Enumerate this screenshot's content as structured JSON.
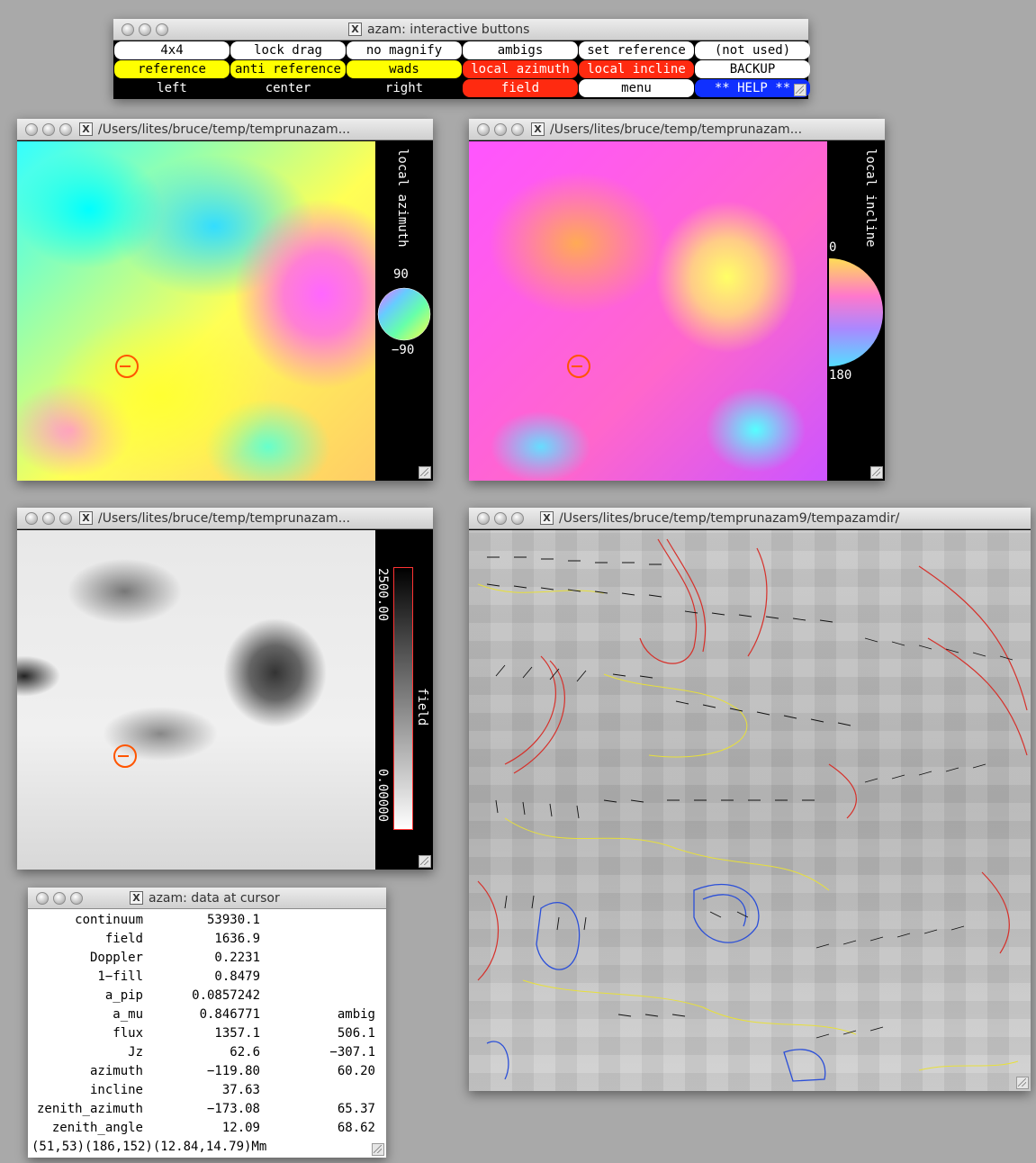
{
  "buttons_window": {
    "title": "azam: interactive buttons",
    "rows": [
      [
        {
          "label": "4x4",
          "color": "white"
        },
        {
          "label": "lock drag",
          "color": "white"
        },
        {
          "label": "no magnify",
          "color": "white"
        },
        {
          "label": "ambigs",
          "color": "white"
        },
        {
          "label": "set reference",
          "color": "white"
        },
        {
          "label": "(not used)",
          "color": "white"
        }
      ],
      [
        {
          "label": "reference",
          "color": "yellow"
        },
        {
          "label": "anti reference",
          "color": "yellow"
        },
        {
          "label": "wads",
          "color": "yellow"
        },
        {
          "label": "local azimuth",
          "color": "red"
        },
        {
          "label": "local incline",
          "color": "red"
        },
        {
          "label": "BACKUP",
          "color": "white"
        }
      ],
      [
        {
          "label": "left",
          "color": "black"
        },
        {
          "label": "center",
          "color": "black"
        },
        {
          "label": "right",
          "color": "black"
        },
        {
          "label": "field",
          "color": "red"
        },
        {
          "label": "menu",
          "color": "white"
        },
        {
          "label": "** HELP **",
          "color": "blue"
        }
      ]
    ]
  },
  "azimuth_window": {
    "title": "/Users/lites/bruce/temp/temprunazam...",
    "legend_label": "local azimuth",
    "wheel_top": "90",
    "wheel_bottom": "−90"
  },
  "incline_window": {
    "title": "/Users/lites/bruce/temp/temprunazam...",
    "legend_label": "local incline",
    "wheel_top": "0",
    "wheel_bottom": "180"
  },
  "field_window": {
    "title": "/Users/lites/bruce/temp/temprunazam...",
    "legend_label": "field",
    "scale_max": "2500.00",
    "scale_min": "0.00000"
  },
  "vector_window": {
    "title": "/Users/lites/bruce/temp/temprunazam9/tempazamdir/"
  },
  "data_window": {
    "title": "azam: data at cursor",
    "rows": [
      {
        "label": "continuum",
        "value": "53930.1",
        "ambig": ""
      },
      {
        "label": "field",
        "value": "1636.9",
        "ambig": ""
      },
      {
        "label": "Doppler",
        "value": "0.2231",
        "ambig": ""
      },
      {
        "label": "1−fill",
        "value": "0.8479",
        "ambig": ""
      },
      {
        "label": "a_pip",
        "value": "0.0857242",
        "ambig": ""
      },
      {
        "label": "a_mu",
        "value": "0.846771",
        "ambig": "ambig"
      },
      {
        "label": "flux",
        "value": "1357.1",
        "ambig": "506.1"
      },
      {
        "label": "Jz",
        "value": "62.6",
        "ambig": "−307.1"
      },
      {
        "label": "azimuth",
        "value": "−119.80",
        "ambig": "60.20"
      },
      {
        "label": "incline",
        "value": "37.63",
        "ambig": ""
      },
      {
        "label": "zenith_azimuth",
        "value": "−173.08",
        "ambig": "65.37"
      },
      {
        "label": "zenith_angle",
        "value": "12.09",
        "ambig": "68.62"
      }
    ],
    "footer": "(51,53)(186,152)(12.84,14.79)Mm"
  }
}
